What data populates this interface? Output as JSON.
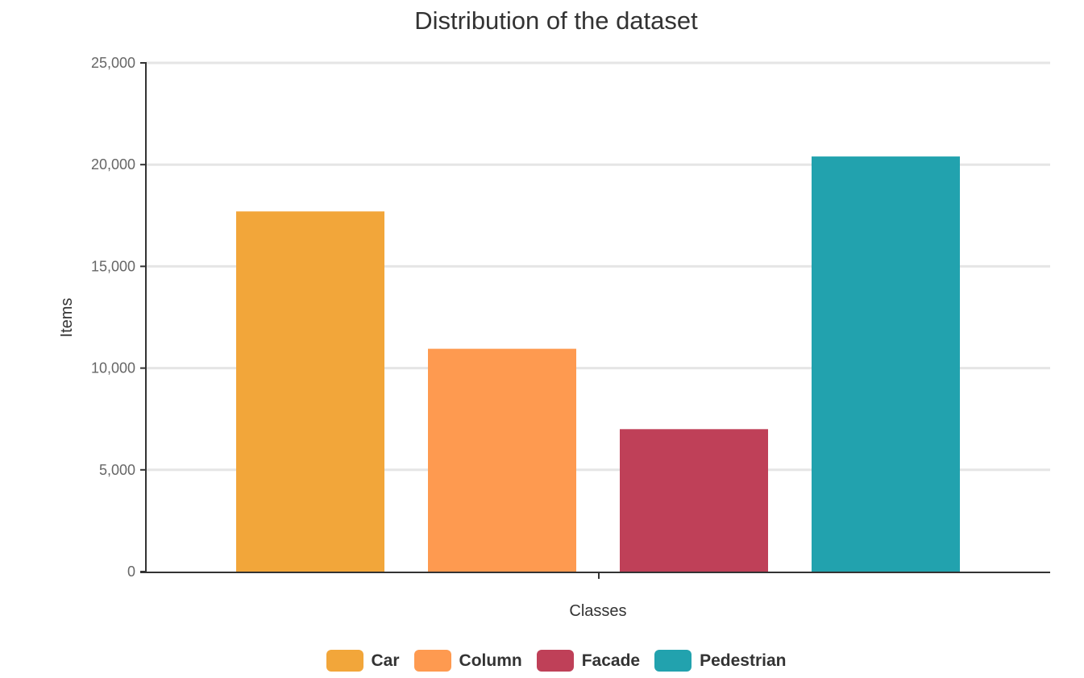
{
  "chart_data": {
    "type": "bar",
    "title": "Distribution of the dataset",
    "xlabel": "Classes",
    "ylabel": "Items",
    "ylim": [
      0,
      25000
    ],
    "yticks": [
      "0",
      "5,000",
      "10,000",
      "15,000",
      "20,000",
      "25,000"
    ],
    "ytick_values": [
      0,
      5000,
      10000,
      15000,
      20000,
      25000
    ],
    "grid": "horizontal",
    "legend_position": "bottom",
    "series": [
      {
        "name": "Car",
        "value": 17700,
        "color": "#f2a63a"
      },
      {
        "name": "Column",
        "value": 10950,
        "color": "#fe9a50"
      },
      {
        "name": "Facade",
        "value": 7000,
        "color": "#bf4058"
      },
      {
        "name": "Pedestrian",
        "value": 20400,
        "color": "#22a2ae"
      }
    ]
  }
}
